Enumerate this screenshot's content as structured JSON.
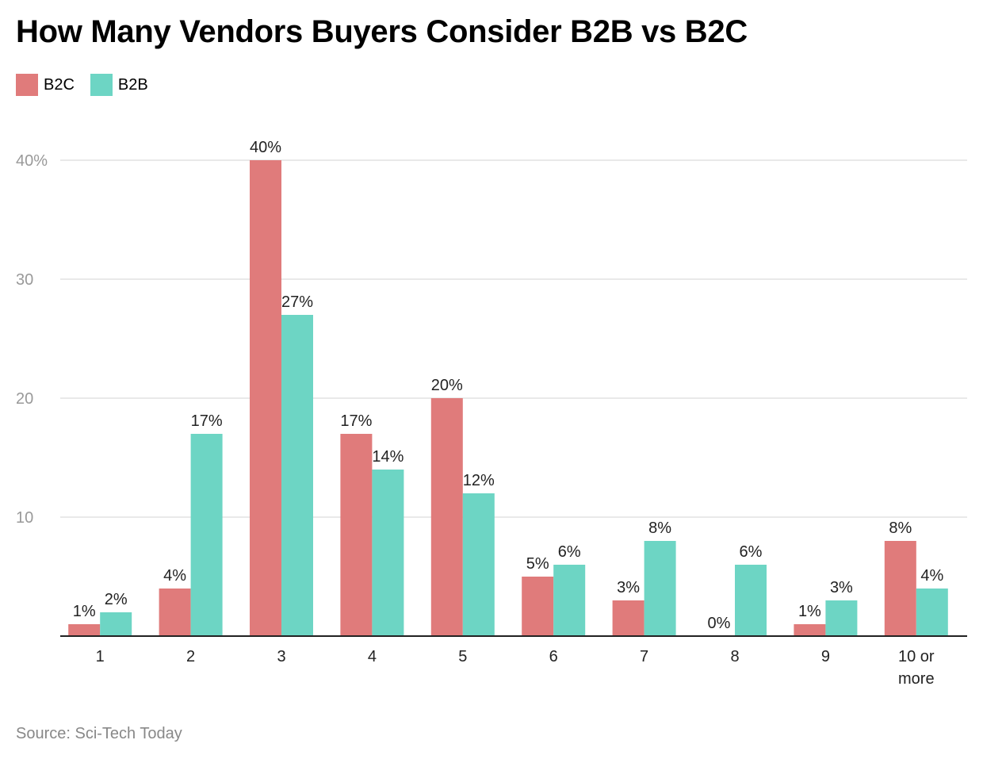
{
  "chart_data": {
    "type": "bar",
    "title": "How Many Vendors Buyers Consider B2B vs B2C",
    "xlabel": "",
    "ylabel": "",
    "ylim": [
      0,
      40
    ],
    "yticks": [
      {
        "value": 10,
        "label": "10"
      },
      {
        "value": 20,
        "label": "20"
      },
      {
        "value": 30,
        "label": "30"
      },
      {
        "value": 40,
        "label": "40%"
      }
    ],
    "categories": [
      "1",
      "2",
      "3",
      "4",
      "5",
      "6",
      "7",
      "8",
      "9",
      "10 or more"
    ],
    "series": [
      {
        "name": "B2C",
        "color": "#e07b7b",
        "values": [
          1,
          4,
          40,
          17,
          20,
          5,
          3,
          0,
          1,
          8
        ],
        "labels": [
          "1%",
          "4%",
          "40%",
          "17%",
          "20%",
          "5%",
          "3%",
          "0%",
          "1%",
          "8%"
        ]
      },
      {
        "name": "B2B",
        "color": "#6dd5c4",
        "values": [
          2,
          17,
          27,
          14,
          12,
          6,
          8,
          6,
          3,
          4
        ],
        "labels": [
          "2%",
          "17%",
          "27%",
          "14%",
          "12%",
          "6%",
          "8%",
          "6%",
          "3%",
          "4%"
        ]
      }
    ],
    "grid": true,
    "legend_position": "top-left"
  },
  "source": "Source: Sci-Tech Today"
}
